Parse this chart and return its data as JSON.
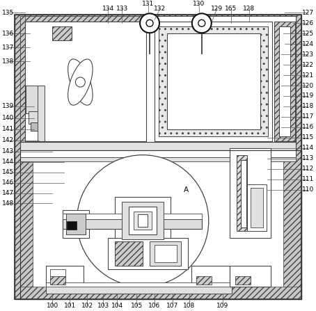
{
  "figsize": [
    4.54,
    4.47
  ],
  "dpi": 100,
  "hatch_fc": "#c8c8c8",
  "hatch_pattern": "////",
  "line_color": "#444444",
  "white": "#ffffff",
  "light_gray": "#e8e8e8",
  "med_gray": "#cccccc",
  "dark_gray": "#888888"
}
